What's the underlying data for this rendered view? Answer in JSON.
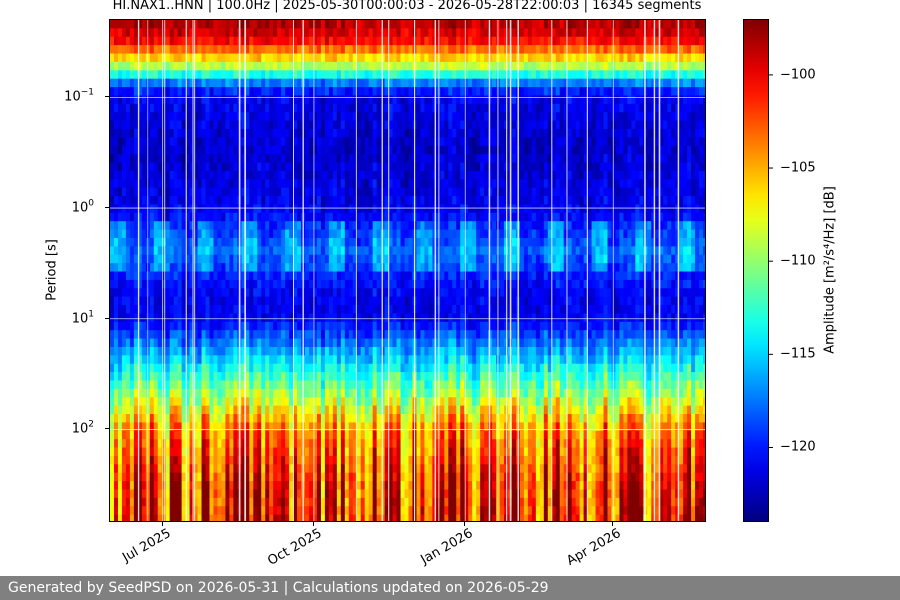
{
  "chart_data": {
    "type": "heatmap",
    "title": "HI.NAX1..HNN | 100.0Hz | 2025-05-30T00:00:03 - 2026-05-28T22:00:03 | 16345 segments",
    "xlabel": "",
    "ylabel": "Period [s]",
    "x_range": [
      "2025-05-30",
      "2026-05-28"
    ],
    "x_ticks": [
      "Jul 2025",
      "Oct 2025",
      "Jan 2026",
      "Apr 2026"
    ],
    "x_tick_dates": [
      "2025-07-01",
      "2025-10-01",
      "2026-01-01",
      "2026-04-01"
    ],
    "y_scale": "log",
    "y_inverted": true,
    "y_range": [
      0.02,
      700
    ],
    "y_ticks": [
      {
        "base": "10",
        "exp": "−1",
        "value": 0.1
      },
      {
        "base": "10",
        "exp": "0",
        "value": 1
      },
      {
        "base": "10",
        "exp": "1",
        "value": 10
      },
      {
        "base": "10",
        "exp": "2",
        "value": 100
      }
    ],
    "colormap": "jet",
    "colorbar_label": "Amplitude [m²/s⁴/Hz] [dB]",
    "colorbar_range": [
      -124,
      -97
    ],
    "colorbar_ticks": [
      "−100",
      "−105",
      "−110",
      "−115",
      "−120"
    ],
    "colorbar_tick_values": [
      -100,
      -105,
      -110,
      -115,
      -120
    ],
    "profile": [
      {
        "period": 0.02,
        "db": -98
      },
      {
        "period": 0.03,
        "db": -100
      },
      {
        "period": 0.05,
        "db": -108
      },
      {
        "period": 0.08,
        "db": -119
      },
      {
        "period": 0.1,
        "db": -121
      },
      {
        "period": 0.3,
        "db": -122
      },
      {
        "period": 1,
        "db": -121
      },
      {
        "period": 2.5,
        "db": -118
      },
      {
        "period": 6,
        "db": -121
      },
      {
        "period": 10,
        "db": -121
      },
      {
        "period": 20,
        "db": -116
      },
      {
        "period": 40,
        "db": -111
      },
      {
        "period": 100,
        "db": -104
      },
      {
        "period": 300,
        "db": -101
      },
      {
        "period": 700,
        "db": -100
      }
    ],
    "grid": true
  },
  "footer": "Generated by SeedPSD on 2026-05-31 | Calculations updated on 2026-05-29"
}
